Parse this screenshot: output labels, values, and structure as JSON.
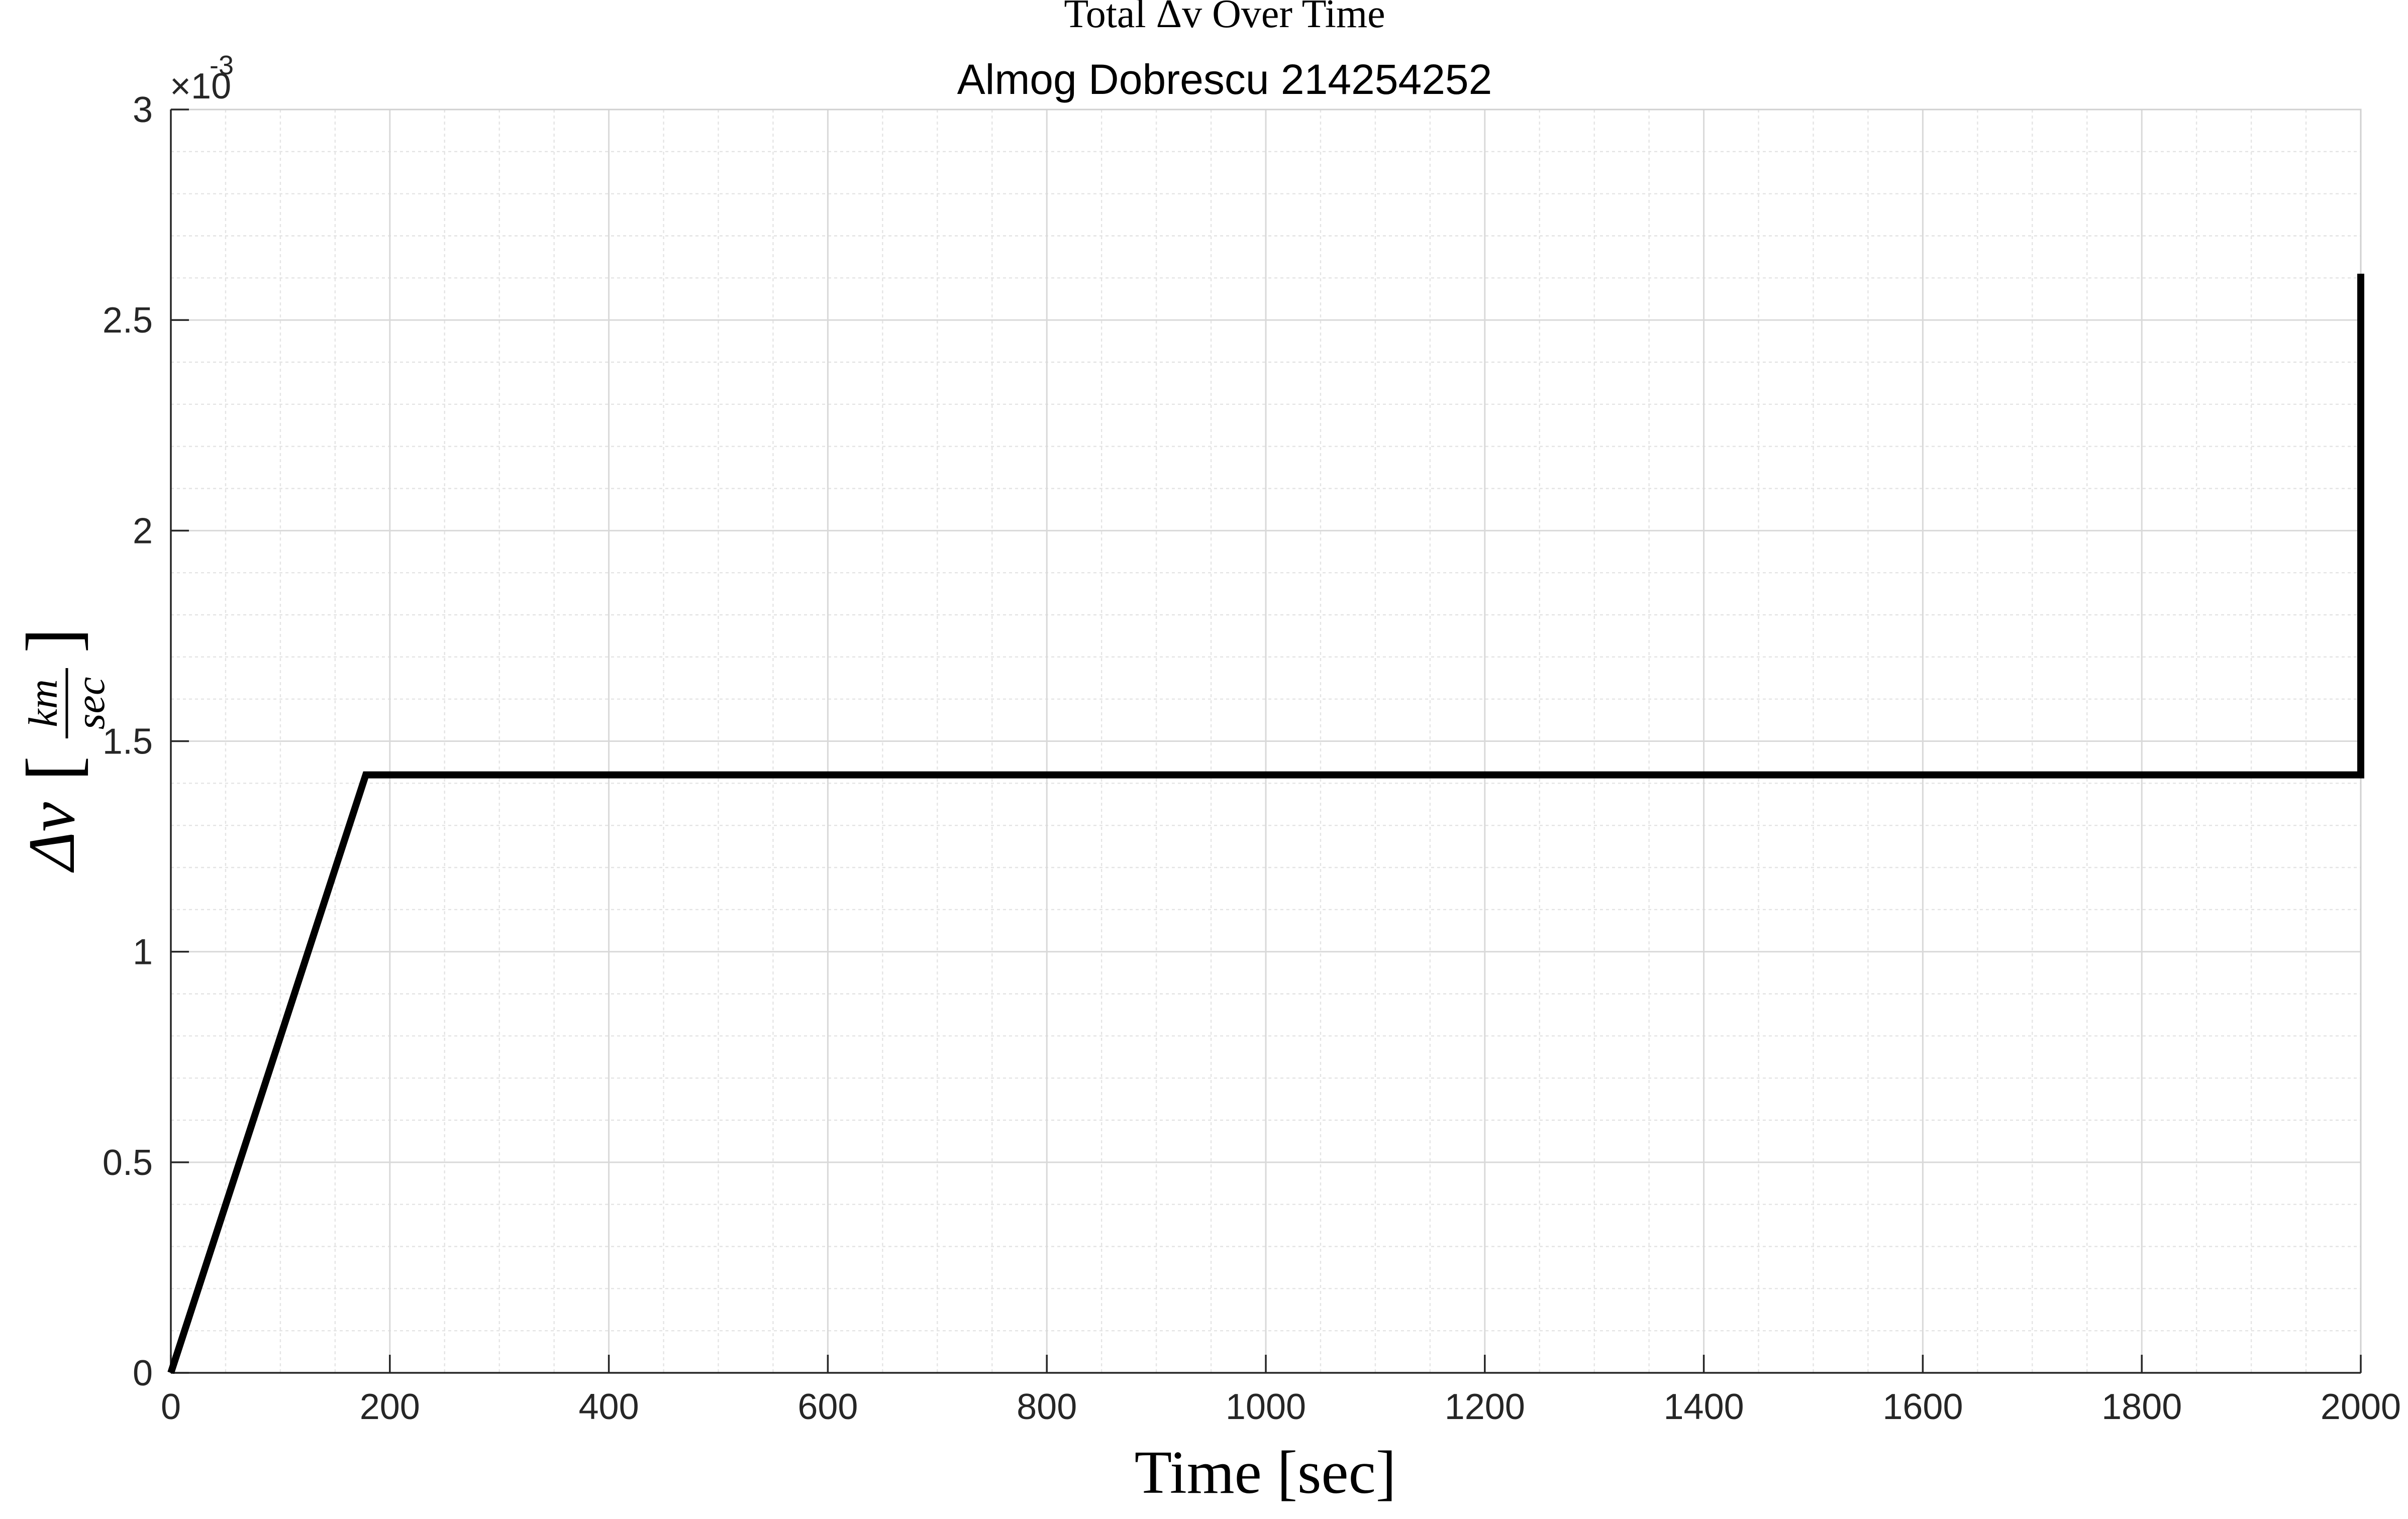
{
  "chart_data": {
    "type": "line",
    "title": "Total Δv Over Time",
    "subtitle": "Almog Dobrescu 214254252",
    "xlabel": "Time [sec]",
    "ylabel_symbol": "Δv",
    "ylabel_unit_numerator": "km",
    "ylabel_unit_denominator": "sec",
    "y_exponent_label": "×10",
    "y_exponent_power": "-3",
    "xlim": [
      0,
      2000
    ],
    "ylim": [
      0,
      0.003
    ],
    "x_ticks": [
      0,
      200,
      400,
      600,
      800,
      1000,
      1200,
      1400,
      1600,
      1800,
      2000
    ],
    "x_tick_labels": [
      "0",
      "200",
      "400",
      "600",
      "800",
      "1000",
      "1200",
      "1400",
      "1600",
      "1800",
      "2000"
    ],
    "y_ticks": [
      0,
      0.0005,
      0.001,
      0.0015,
      0.002,
      0.0025,
      0.003
    ],
    "y_tick_labels": [
      "0",
      "0.5",
      "1",
      "1.5",
      "2",
      "2.5",
      "3"
    ],
    "x_minor_step": 50,
    "y_minor_step": 0.0001,
    "grid": true,
    "minor_grid": true,
    "series": [
      {
        "color": "#000000",
        "x": [
          0,
          178,
          2000,
          2000
        ],
        "y": [
          0,
          0.00142,
          0.00142,
          0.00261
        ]
      }
    ]
  }
}
